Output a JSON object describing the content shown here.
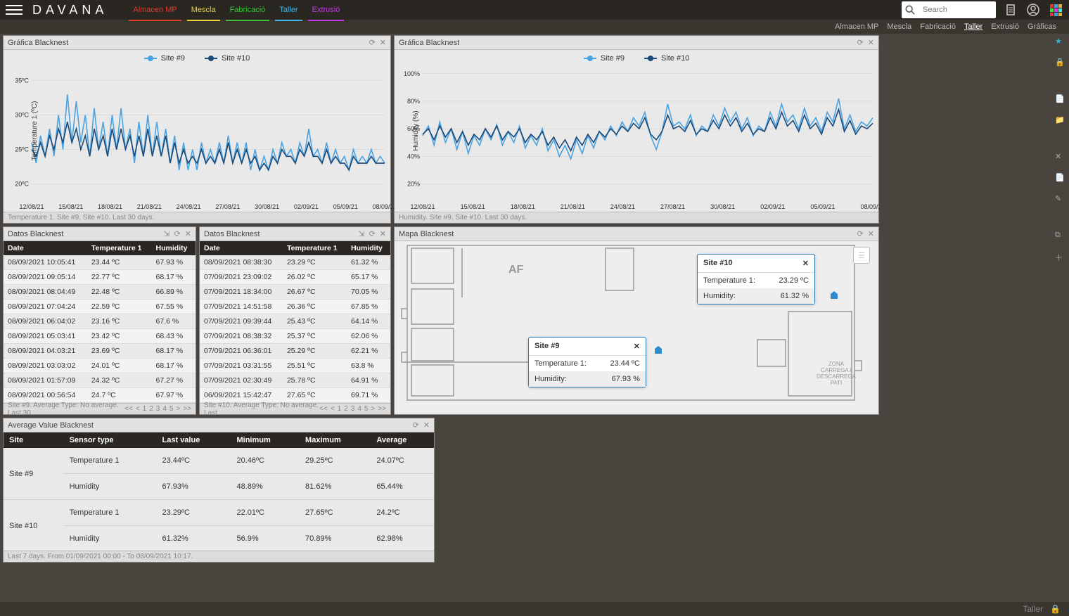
{
  "logo": "DAVANA",
  "search": {
    "placeholder": "Search"
  },
  "topnav": [
    {
      "label": "Almacen MP",
      "color": "#e33a2e"
    },
    {
      "label": "Mescla",
      "color": "#e8d23a"
    },
    {
      "label": "Fabricació",
      "color": "#3ac23a"
    },
    {
      "label": "Taller",
      "color": "#3ab7e8"
    },
    {
      "label": "Extrusió",
      "color": "#c23ae8"
    }
  ],
  "subnav": [
    "Almacen MP",
    "Mescla",
    "Fabricació",
    "Taller",
    "Extrusió",
    "Gráficas"
  ],
  "subnav_active": 3,
  "colors": {
    "site9": "#4aa3e0",
    "site10": "#1a4a7a",
    "panel_bg": "#e9e9e9",
    "grid": "#d0d0d0",
    "axis": "#333"
  },
  "chart1": {
    "title": "Gráfica Blacknest",
    "ylabel": "Temperature 1 (ºC)",
    "ylim": [
      18,
      37
    ],
    "yticks": [
      20,
      25,
      30,
      35
    ],
    "xticks": [
      "12/08/21",
      "15/08/21",
      "18/08/21",
      "21/08/21",
      "24/08/21",
      "27/08/21",
      "30/08/21",
      "02/09/21",
      "05/09/21",
      "08/09/21"
    ],
    "legend": [
      "Site #9",
      "Site #10"
    ],
    "footer": "Temperature 1. Site #9, Site #10. Last 30 days.",
    "series9": [
      26,
      23,
      27,
      24,
      28,
      24,
      30,
      25,
      33,
      26,
      32,
      26,
      30,
      24,
      31,
      25,
      29,
      24,
      30,
      25,
      31,
      25,
      28,
      23,
      29,
      24,
      30,
      24,
      29,
      24,
      28,
      23,
      27,
      22,
      26,
      22,
      25,
      22,
      26,
      23,
      25,
      23,
      26,
      23,
      27,
      23,
      26,
      23,
      26,
      22,
      25,
      22,
      24,
      22,
      25,
      23,
      26,
      24,
      25,
      23,
      26,
      24,
      28,
      24,
      25,
      23,
      26,
      23,
      25,
      23,
      24,
      22,
      25,
      23,
      24,
      23,
      25,
      23,
      24,
      23
    ],
    "series10": [
      25,
      24,
      26,
      24,
      27,
      25,
      28,
      26,
      29,
      26,
      28,
      25,
      27,
      24,
      28,
      25,
      27,
      24,
      28,
      25,
      28,
      25,
      27,
      24,
      27,
      24,
      28,
      24,
      27,
      24,
      27,
      23,
      26,
      23,
      25,
      23,
      24,
      23,
      25,
      23,
      24,
      23,
      25,
      23,
      26,
      23,
      25,
      23,
      25,
      23,
      24,
      22,
      23,
      22,
      24,
      23,
      25,
      24,
      24,
      23,
      25,
      24,
      26,
      24,
      24,
      23,
      25,
      23,
      24,
      23,
      23,
      22,
      24,
      23,
      23,
      23,
      24,
      23,
      23,
      23
    ]
  },
  "chart2": {
    "title": "Gráfica Blacknest",
    "ylabel": "Humidity (%)",
    "ylim": [
      10,
      105
    ],
    "yticks": [
      20,
      40,
      60,
      80,
      100
    ],
    "xticks": [
      "12/08/21",
      "15/08/21",
      "18/08/21",
      "21/08/21",
      "24/08/21",
      "27/08/21",
      "30/08/21",
      "02/09/21",
      "05/09/21",
      "08/09/21"
    ],
    "legend": [
      "Site #9",
      "Site #10"
    ],
    "footer": "Humidity. Site #9, Site #10. Last 30 days.",
    "series9": [
      55,
      62,
      48,
      65,
      50,
      60,
      45,
      58,
      42,
      55,
      48,
      60,
      52,
      63,
      48,
      58,
      50,
      62,
      46,
      55,
      48,
      60,
      44,
      52,
      40,
      48,
      38,
      52,
      42,
      55,
      46,
      58,
      52,
      62,
      55,
      65,
      58,
      68,
      62,
      72,
      55,
      45,
      58,
      78,
      62,
      65,
      60,
      70,
      55,
      62,
      58,
      70,
      62,
      75,
      65,
      72,
      60,
      68,
      55,
      62,
      58,
      72,
      62,
      78,
      65,
      70,
      60,
      75,
      62,
      68,
      58,
      72,
      65,
      82,
      60,
      70,
      58,
      65,
      62,
      68
    ],
    "series10": [
      56,
      60,
      52,
      62,
      54,
      60,
      50,
      58,
      48,
      56,
      52,
      60,
      54,
      62,
      52,
      58,
      54,
      60,
      50,
      56,
      52,
      58,
      48,
      54,
      46,
      52,
      44,
      54,
      48,
      56,
      50,
      58,
      54,
      60,
      56,
      62,
      58,
      64,
      60,
      68,
      56,
      52,
      58,
      70,
      60,
      62,
      58,
      66,
      56,
      60,
      58,
      66,
      60,
      70,
      62,
      68,
      58,
      64,
      56,
      60,
      58,
      68,
      60,
      72,
      62,
      66,
      58,
      70,
      60,
      64,
      56,
      68,
      62,
      74,
      58,
      66,
      56,
      62,
      60,
      64
    ]
  },
  "data1": {
    "title": "Datos Blacknest",
    "footer": "Site #9. Average Type: No average. Last 30",
    "cols": [
      "Date",
      "Temperature 1",
      "Humidity"
    ],
    "rows": [
      [
        "08/09/2021 10:05:41",
        "23.44 ºC",
        "67.93 %"
      ],
      [
        "08/09/2021 09:05:14",
        "22.77 ºC",
        "68.17 %"
      ],
      [
        "08/09/2021 08:04:49",
        "22.48 ºC",
        "66.89 %"
      ],
      [
        "08/09/2021 07:04:24",
        "22.59 ºC",
        "67.55 %"
      ],
      [
        "08/09/2021 06:04:02",
        "23.16 ºC",
        "67.6 %"
      ],
      [
        "08/09/2021 05:03:41",
        "23.42 ºC",
        "68.43 %"
      ],
      [
        "08/09/2021 04:03:21",
        "23.69 ºC",
        "68.17 %"
      ],
      [
        "08/09/2021 03:03:02",
        "24.01 ºC",
        "68.17 %"
      ],
      [
        "08/09/2021 01:57:09",
        "24.32 ºC",
        "67.27 %"
      ],
      [
        "08/09/2021 00:56:54",
        "24.7 ºC",
        "67.97 %"
      ]
    ]
  },
  "data2": {
    "title": "Datos Blacknest",
    "footer": "Site #10. Average Type: No average. Last",
    "cols": [
      "Date",
      "Temperature 1",
      "Humidity"
    ],
    "rows": [
      [
        "08/09/2021 08:38:30",
        "23.29 ºC",
        "61.32 %"
      ],
      [
        "07/09/2021 23:09:02",
        "26.02 ºC",
        "65.17 %"
      ],
      [
        "07/09/2021 18:34:00",
        "26.67 ºC",
        "70.05 %"
      ],
      [
        "07/09/2021 14:51:58",
        "26.36 ºC",
        "67.85 %"
      ],
      [
        "07/09/2021 09:39:44",
        "25.43 ºC",
        "64.14 %"
      ],
      [
        "07/09/2021 08:38:32",
        "25.37 ºC",
        "62.06 %"
      ],
      [
        "07/09/2021 06:36:01",
        "25.29 ºC",
        "62.21 %"
      ],
      [
        "07/09/2021 03:31:55",
        "25.51 ºC",
        "63.8 %"
      ],
      [
        "07/09/2021 02:30:49",
        "25.78 ºC",
        "64.91 %"
      ],
      [
        "06/09/2021 15:42:47",
        "27.65 ºC",
        "69.71 %"
      ]
    ]
  },
  "pager": [
    "<<",
    "<",
    "1",
    "2",
    "3",
    "4",
    "5",
    ">",
    ">>"
  ],
  "avg": {
    "title": "Average Value Blacknest",
    "footer": "Last 7 days. From 01/09/2021 00:00 - To 08/09/2021 10:17.",
    "cols": [
      "Site",
      "Sensor type",
      "Last value",
      "Minimum",
      "Maximum",
      "Average"
    ],
    "rows": [
      {
        "site": "Site #9",
        "sensors": [
          [
            "Temperature 1",
            "23.44ºC",
            "20.46ºC",
            "29.25ºC",
            "24.07ºC"
          ],
          [
            "Humidity",
            "67.93%",
            "48.89%",
            "81.62%",
            "65.44%"
          ]
        ]
      },
      {
        "site": "Site #10",
        "sensors": [
          [
            "Temperature 1",
            "23.29ºC",
            "22.01ºC",
            "27.65ºC",
            "24.2ºC"
          ],
          [
            "Humidity",
            "61.32%",
            "56.9%",
            "70.89%",
            "62.98%"
          ]
        ]
      }
    ]
  },
  "map": {
    "title": "Mapa Blacknest",
    "label_af": "AF",
    "label_zona": "ZONA\nCARREGA I\nDESCARREGA\nPATI",
    "popup9": {
      "title": "Site #9",
      "rows": [
        [
          "Temperature 1:",
          "23.44 ºC"
        ],
        [
          "Humidity:",
          "67.93 %"
        ]
      ]
    },
    "popup10": {
      "title": "Site #10",
      "rows": [
        [
          "Temperature 1:",
          "23.29 ºC"
        ],
        [
          "Humidity:",
          "61.32 %"
        ]
      ]
    }
  },
  "status": "Taller"
}
